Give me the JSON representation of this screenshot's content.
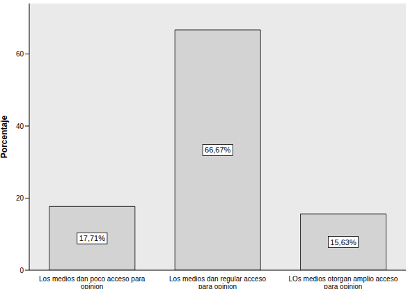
{
  "chart_data": {
    "type": "bar",
    "y_label": "Porcentaje",
    "categories": [
      "Los medios dan poco acceso para opinion",
      "Los medios dan regular acceso para opinion",
      "LOs medios otorgan amplio acceso para opinion"
    ],
    "values": [
      17.71,
      66.67,
      15.63
    ],
    "value_labels": [
      "17,71%",
      "66,67%",
      "15,63%"
    ],
    "color": "#d3d3d3",
    "ylim": [
      0,
      74
    ],
    "yticks": [
      0,
      20,
      40,
      60
    ],
    "grid": false,
    "data_labels": true
  }
}
